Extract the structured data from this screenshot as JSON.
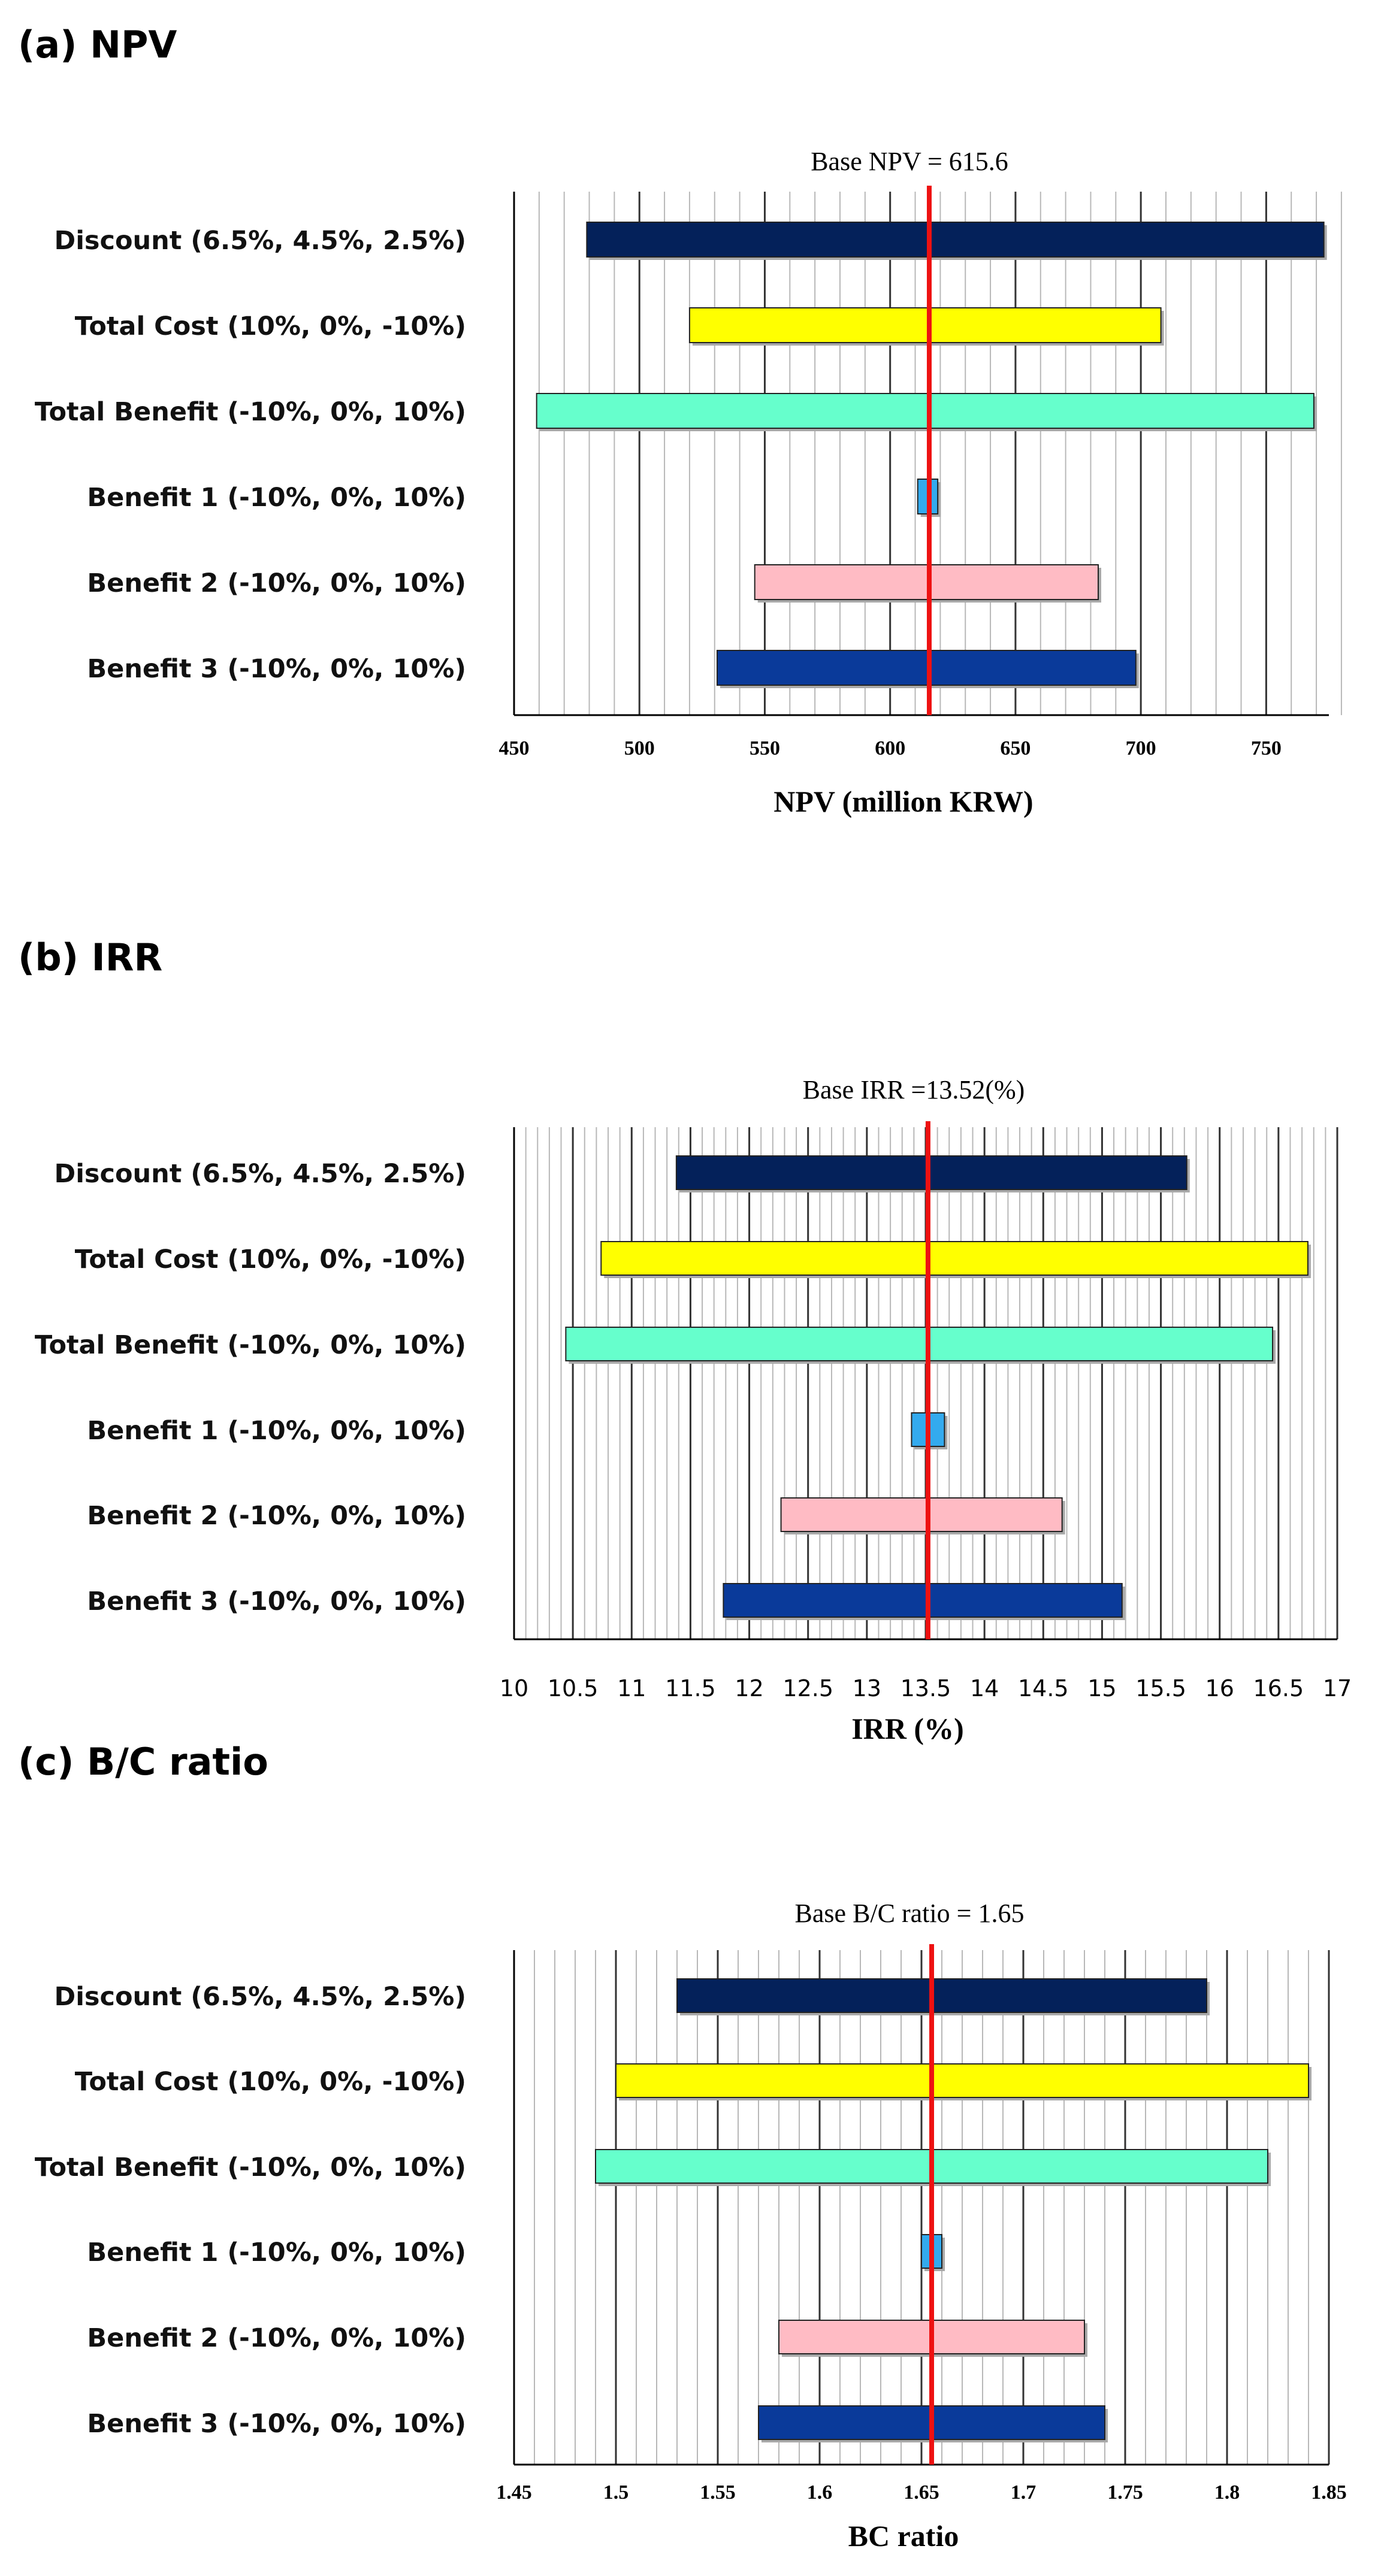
{
  "chart_data": [
    {
      "type": "bar",
      "subtype": "tornado",
      "panel_title": "(a) NPV",
      "base_label": "Base NPV = 615.6",
      "base_value": 615.6,
      "xlabel": "NPV (million KRW)",
      "xlim": [
        450,
        775
      ],
      "ticks": [
        450,
        500,
        550,
        600,
        650,
        700,
        750
      ],
      "tick_labels": [
        "450",
        "500",
        "550",
        "600",
        "650",
        "700",
        "750"
      ],
      "minor_grid_step": 10,
      "tick_font": "serif-bold",
      "categories": [
        "Discount (6.5%, 4.5%, 2.5%)",
        "Total Cost (10%, 0%, -10%)",
        "Total Benefit (-10%, 0%, 10%)",
        "Benefit 1 (-10%, 0%, 10%)",
        "Benefit 2 (-10%, 0%, 10%)",
        "Benefit 3 (-10%, 0%, 10%)"
      ],
      "ranges": [
        [
          479,
          773
        ],
        [
          520,
          708
        ],
        [
          459,
          769
        ],
        [
          611,
          619
        ],
        [
          546,
          683
        ],
        [
          531,
          698
        ]
      ],
      "colors": [
        "#04215a",
        "#ffff00",
        "#66ffcc",
        "#33aaee",
        "#ffbbc4",
        "#0a3a9a"
      ]
    },
    {
      "type": "bar",
      "subtype": "tornado",
      "panel_title": "(b) IRR",
      "base_label": "Base IRR =13.52(%)",
      "base_value": 13.52,
      "xlabel": "IRR (%)",
      "xlim": [
        10,
        17
      ],
      "ticks": [
        10,
        10.5,
        11,
        11.5,
        12,
        12.5,
        13,
        13.5,
        14,
        14.5,
        15,
        15.5,
        16,
        16.5,
        17
      ],
      "tick_labels": [
        "10",
        "10.5",
        "11",
        "11.5",
        "12",
        "12.5",
        "13",
        "13.5",
        "14",
        "14.5",
        "15",
        "15.5",
        "16",
        "16.5",
        "17"
      ],
      "minor_grid_step": 0.1,
      "tick_font": "sans",
      "categories": [
        "Discount (6.5%, 4.5%, 2.5%)",
        "Total Cost (10%, 0%, -10%)",
        "Total Benefit (-10%, 0%, 10%)",
        "Benefit 1 (-10%, 0%, 10%)",
        "Benefit 2 (-10%, 0%, 10%)",
        "Benefit 3 (-10%, 0%, 10%)"
      ],
      "ranges": [
        [
          11.38,
          15.72
        ],
        [
          10.74,
          16.75
        ],
        [
          10.44,
          16.45
        ],
        [
          13.38,
          13.66
        ],
        [
          12.27,
          14.66
        ],
        [
          11.78,
          15.17
        ]
      ],
      "colors": [
        "#04215a",
        "#ffff00",
        "#66ffcc",
        "#33aaee",
        "#ffbbc4",
        "#0a3a9a"
      ]
    },
    {
      "type": "bar",
      "subtype": "tornado",
      "panel_title": "(c) B/C ratio",
      "base_label": "Base B/C ratio = 1.65",
      "base_value": 1.655,
      "xlabel": "BC ratio",
      "xlim": [
        1.45,
        1.85
      ],
      "ticks": [
        1.45,
        1.5,
        1.55,
        1.6,
        1.65,
        1.7,
        1.75,
        1.8,
        1.85
      ],
      "tick_labels": [
        "1.45",
        "1.5",
        "1.55",
        "1.6",
        "1.65",
        "1.7",
        "1.75",
        "1.8",
        "1.85"
      ],
      "minor_grid_step": 0.01,
      "tick_font": "serif-bold",
      "categories": [
        "Discount (6.5%, 4.5%, 2.5%)",
        "Total Cost (10%, 0%, -10%)",
        "Total Benefit (-10%, 0%, 10%)",
        "Benefit 1 (-10%, 0%, 10%)",
        "Benefit 2 (-10%, 0%, 10%)",
        "Benefit 3 (-10%, 0%, 10%)"
      ],
      "ranges": [
        [
          1.53,
          1.79
        ],
        [
          1.5,
          1.84
        ],
        [
          1.49,
          1.82
        ],
        [
          1.65,
          1.66
        ],
        [
          1.58,
          1.73
        ],
        [
          1.57,
          1.74
        ]
      ],
      "colors": [
        "#04215a",
        "#ffff00",
        "#66ffcc",
        "#33aaee",
        "#ffbbc4",
        "#0a3a9a"
      ]
    }
  ]
}
